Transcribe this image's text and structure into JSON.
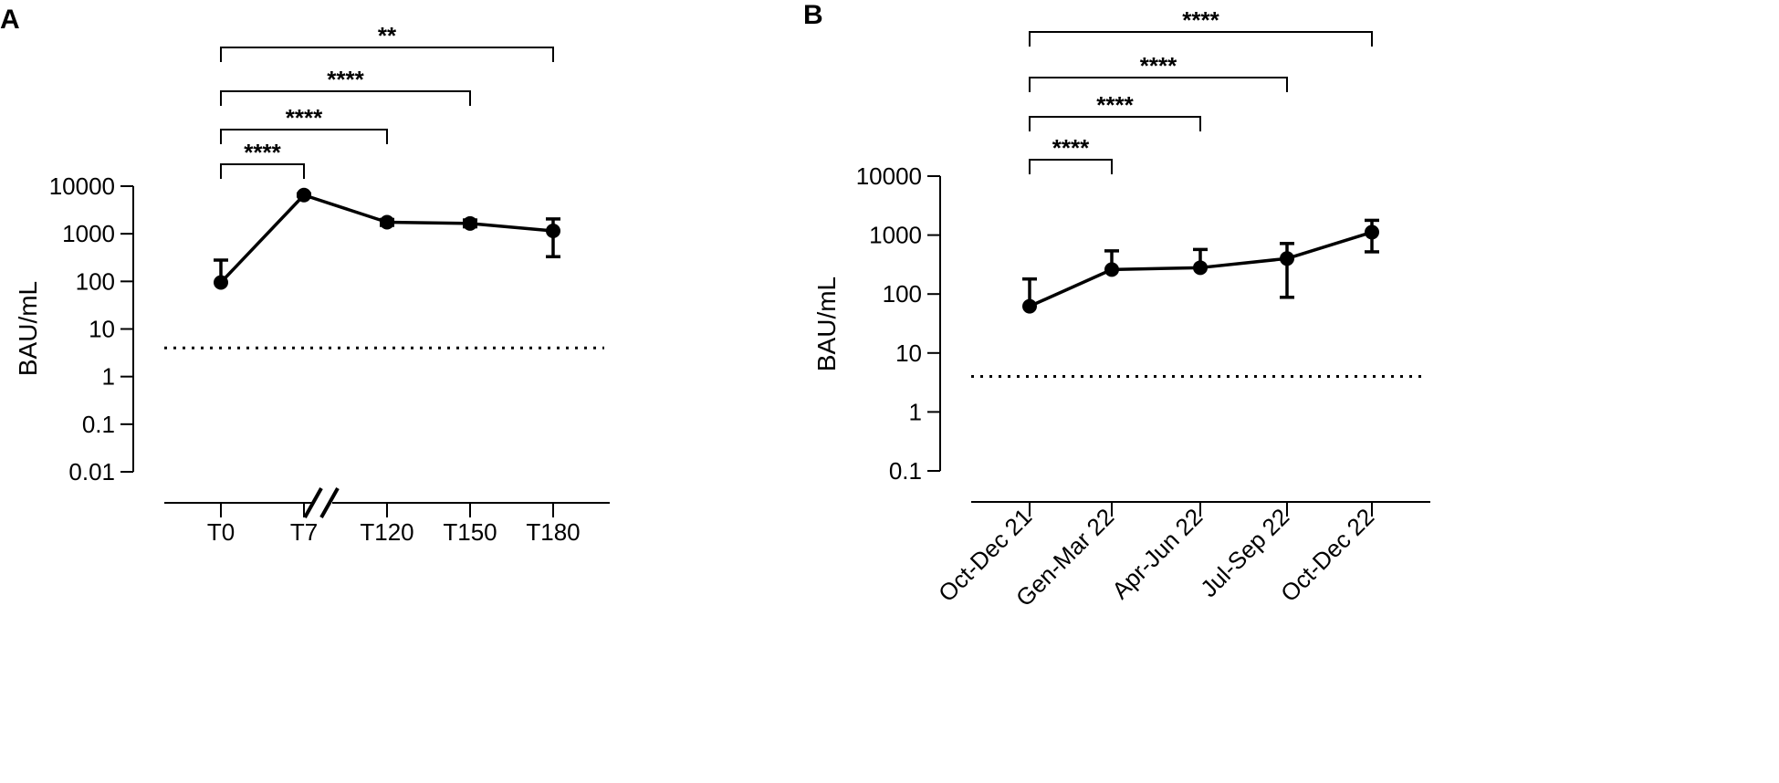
{
  "chart_data": [
    {
      "panel": "A",
      "type": "line",
      "ylabel": "BAU/mL",
      "xlabel": "",
      "yscale": "log",
      "ylim": [
        0.01,
        10000
      ],
      "y_ticks": [
        "10000",
        "1000",
        "100",
        "10",
        "1",
        "0.1",
        "0.01"
      ],
      "categories": [
        "T0",
        "T7",
        "T120",
        "T150",
        "T180"
      ],
      "axis_break": "between T7 and T120",
      "series": [
        {
          "name": "BAU/mL",
          "values": [
            95,
            6500,
            1750,
            1650,
            1150
          ],
          "error_upper": [
            280,
            6900,
            2000,
            1950,
            2050
          ],
          "error_lower": [
            95,
            6200,
            1500,
            1400,
            330
          ]
        }
      ],
      "reference_line": {
        "value": 4,
        "style": "dotted"
      },
      "comparisons": [
        {
          "from": "T0",
          "to": "T7",
          "label": "****"
        },
        {
          "from": "T0",
          "to": "T120",
          "label": "****"
        },
        {
          "from": "T0",
          "to": "T150",
          "label": "****"
        },
        {
          "from": "T0",
          "to": "T180",
          "label": "**"
        }
      ]
    },
    {
      "panel": "B",
      "type": "line",
      "ylabel": "BAU/mL",
      "xlabel": "",
      "yscale": "log",
      "ylim": [
        0.1,
        10000
      ],
      "y_ticks": [
        "10000",
        "1000",
        "100",
        "10",
        "1",
        "0.1"
      ],
      "categories": [
        "Oct-Dec 21",
        "Gen-Mar 22",
        "Apr-Jun 22",
        "Jul-Sep 22",
        "Oct-Dec 22"
      ],
      "series": [
        {
          "name": "BAU/mL",
          "values": [
            62,
            260,
            280,
            400,
            1120
          ],
          "error_upper": [
            180,
            540,
            570,
            720,
            1780
          ],
          "error_lower": [
            62,
            260,
            280,
            88,
            520
          ]
        }
      ],
      "reference_line": {
        "value": 4,
        "style": "dotted"
      },
      "comparisons": [
        {
          "from": "Oct-Dec 21",
          "to": "Gen-Mar 22",
          "label": "****"
        },
        {
          "from": "Oct-Dec 21",
          "to": "Apr-Jun 22",
          "label": "****"
        },
        {
          "from": "Oct-Dec 21",
          "to": "Jul-Sep 22",
          "label": "****"
        },
        {
          "from": "Oct-Dec 21",
          "to": "Oct-Dec 22",
          "label": "****"
        }
      ]
    }
  ]
}
